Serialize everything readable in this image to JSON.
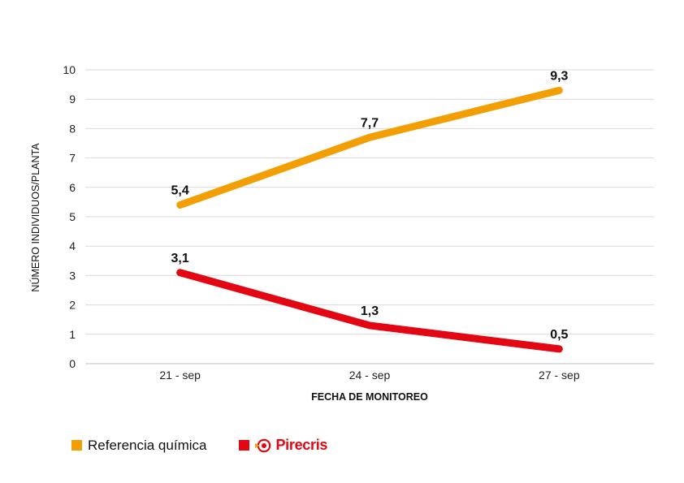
{
  "chart_data": {
    "type": "line",
    "categories": [
      "21 - sep",
      "24 - sep",
      "27 - sep"
    ],
    "series": [
      {
        "name": "Referencia química",
        "values": [
          5.4,
          7.7,
          9.3
        ],
        "labels": [
          "5,4",
          "7,7",
          "9,3"
        ],
        "color": "#f29f05"
      },
      {
        "name": "Pirecris",
        "values": [
          3.1,
          1.3,
          0.5
        ],
        "labels": [
          "3,1",
          "1,3",
          "0,5"
        ],
        "color": "#e30613"
      }
    ],
    "xlabel": "FECHA DE MONITOREO",
    "ylabel": "NÚMERO INDIVIDUOS/PLANTA",
    "ylim": [
      0,
      10
    ],
    "yticks": [
      0,
      1,
      2,
      3,
      4,
      5,
      6,
      7,
      8,
      9,
      10
    ],
    "grid": true,
    "legend": "bottom-left"
  },
  "legend": {
    "items": [
      {
        "label": "Referencia química",
        "color": "#f29f05",
        "icon": "square"
      },
      {
        "label": "Pirecris",
        "color": "#e30613",
        "icon": "pirecris-logo"
      }
    ]
  }
}
